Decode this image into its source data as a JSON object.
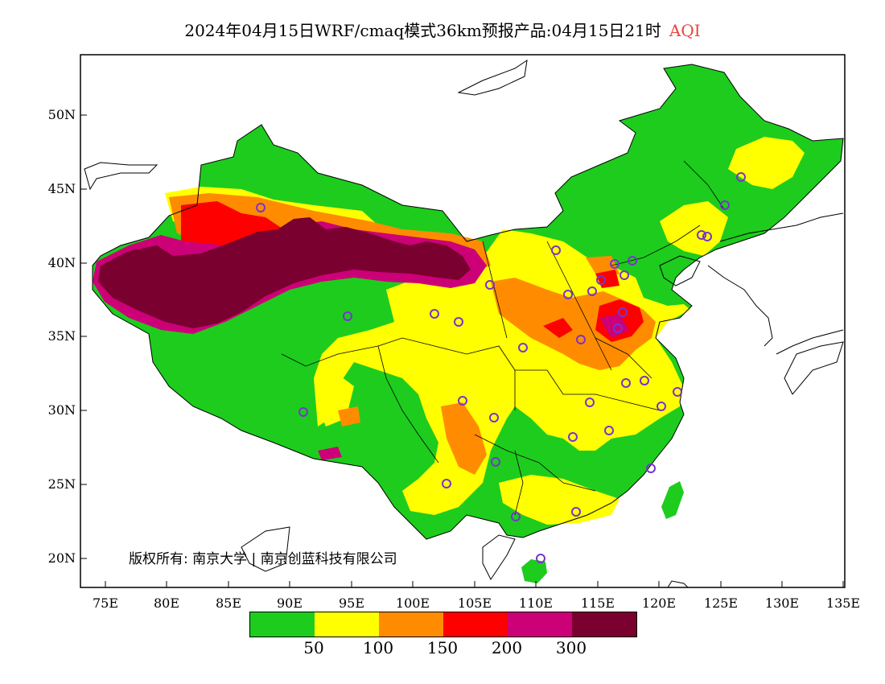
{
  "title": "2024年04月15日WRF/cmaq模式36km预报产品:04月15日21时",
  "pollutant": "AQI",
  "pollutant_color": "#e8433c",
  "copyright": "版权所有: 南京大学 | 南京创蓝科技有限公司",
  "lat_labels": [
    "50N",
    "45N",
    "40N",
    "35N",
    "30N",
    "25N",
    "20N"
  ],
  "lon_labels": [
    "75E",
    "80E",
    "85E",
    "90E",
    "95E",
    "100E",
    "105E",
    "110E",
    "115E",
    "120E",
    "125E",
    "130E",
    "135E"
  ],
  "legend": {
    "colors": [
      "#1ecc1e",
      "#ffff00",
      "#ff8c00",
      "#ff0000",
      "#cc0077",
      "#7a0030"
    ],
    "labels": [
      "50",
      "100",
      "150",
      "200",
      "300"
    ]
  },
  "aqi_colors": {
    "good": "#1ecc1e",
    "moderate": "#ffff00",
    "sensitive": "#ff8c00",
    "unhealthy": "#ff0000",
    "very_unhealthy": "#cc0077",
    "hazardous": "#7a0030"
  }
}
